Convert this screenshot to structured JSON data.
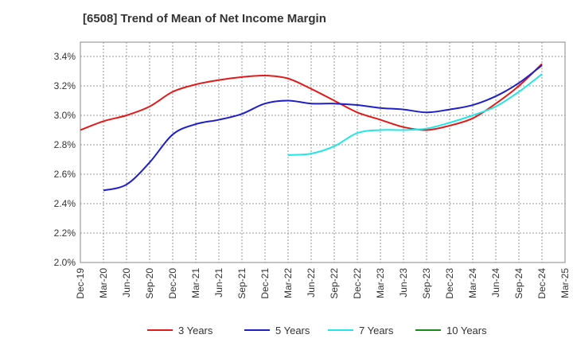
{
  "chart_data": {
    "type": "line",
    "title": "[6508]  Trend of Mean of Net Income Margin",
    "xlabel": "",
    "ylabel": "",
    "x_ticks": [
      "Dec-19",
      "Mar-20",
      "Jun-20",
      "Sep-20",
      "Dec-20",
      "Mar-21",
      "Jun-21",
      "Sep-21",
      "Dec-21",
      "Mar-22",
      "Jun-22",
      "Sep-22",
      "Dec-22",
      "Mar-23",
      "Jun-23",
      "Sep-23",
      "Dec-23",
      "Mar-24",
      "Jun-24",
      "Sep-24",
      "Dec-24",
      "Mar-25"
    ],
    "y_ticks": [
      "2.0%",
      "2.2%",
      "2.4%",
      "2.6%",
      "2.8%",
      "3.0%",
      "3.2%",
      "3.4%"
    ],
    "ylim": [
      2.0,
      3.4
    ],
    "grid": true,
    "legend_position": "bottom",
    "series": [
      {
        "name": "3 Years",
        "color": "#e01b1b",
        "x": [
          "Dec-19",
          "Mar-20",
          "Jun-20",
          "Sep-20",
          "Dec-20",
          "Mar-21",
          "Jun-21",
          "Sep-21",
          "Dec-21",
          "Mar-22",
          "Jun-22",
          "Sep-22",
          "Dec-22",
          "Mar-23",
          "Jun-23",
          "Sep-23",
          "Dec-23",
          "Mar-24",
          "Jun-24",
          "Sep-24",
          "Dec-24"
        ],
        "values": [
          2.9,
          2.96,
          3.0,
          3.06,
          3.16,
          3.21,
          3.24,
          3.26,
          3.27,
          3.25,
          3.18,
          3.1,
          3.02,
          2.97,
          2.92,
          2.9,
          2.93,
          2.98,
          3.08,
          3.2,
          3.35
        ]
      },
      {
        "name": "5 Years",
        "color": "#1f1fc8",
        "x": [
          "Mar-20",
          "Jun-20",
          "Sep-20",
          "Dec-20",
          "Mar-21",
          "Jun-21",
          "Sep-21",
          "Dec-21",
          "Mar-22",
          "Jun-22",
          "Sep-22",
          "Dec-22",
          "Mar-23",
          "Jun-23",
          "Sep-23",
          "Dec-23",
          "Mar-24",
          "Jun-24",
          "Sep-24",
          "Dec-24"
        ],
        "values": [
          2.49,
          2.53,
          2.68,
          2.87,
          2.94,
          2.97,
          3.01,
          3.08,
          3.1,
          3.08,
          3.08,
          3.07,
          3.05,
          3.04,
          3.02,
          3.04,
          3.07,
          3.13,
          3.22,
          3.34
        ]
      },
      {
        "name": "7 Years",
        "color": "#22e5e5",
        "x": [
          "Mar-22",
          "Jun-22",
          "Sep-22",
          "Dec-22",
          "Mar-23",
          "Jun-23",
          "Sep-23",
          "Dec-23",
          "Mar-24",
          "Jun-24",
          "Sep-24",
          "Dec-24"
        ],
        "values": [
          2.73,
          2.74,
          2.79,
          2.88,
          2.9,
          2.9,
          2.91,
          2.95,
          3.0,
          3.06,
          3.16,
          3.28
        ]
      },
      {
        "name": "10 Years",
        "color": "#1a8a1a",
        "x": [],
        "values": []
      }
    ]
  }
}
